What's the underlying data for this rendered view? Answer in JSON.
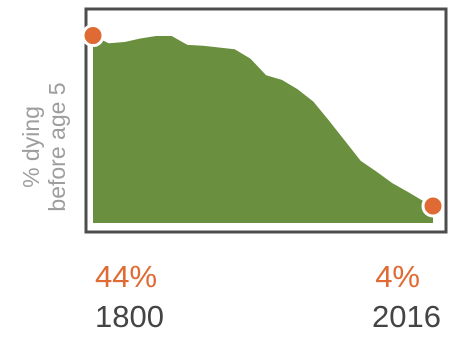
{
  "chart_data": {
    "type": "area",
    "ylabel": [
      "% dying",
      "before age 5"
    ],
    "x": [
      1800,
      1810,
      1820,
      1830,
      1840,
      1850,
      1860,
      1870,
      1880,
      1890,
      1900,
      1910,
      1920,
      1930,
      1940,
      1950,
      1960,
      1970,
      1980,
      1990,
      2000,
      2010,
      2016
    ],
    "values": [
      44,
      42.2,
      42.5,
      43.3,
      43.9,
      43.9,
      41.8,
      41.6,
      41.2,
      40.8,
      38.6,
      34.7,
      33.6,
      31.4,
      28.5,
      24,
      19.3,
      14.6,
      12.1,
      9.4,
      7.3,
      5.1,
      4
    ],
    "xlim": [
      1800,
      2016
    ],
    "ylim": [
      0,
      50
    ],
    "grid": false,
    "colors": {
      "area": "#6a8f3f",
      "markers": "#e06a33",
      "frame": "#4d4d4d",
      "ylabel": "#9e9e9e",
      "years": "#444444"
    },
    "start": {
      "value_label": "44%",
      "year_label": "1800"
    },
    "end": {
      "value_label": "4%",
      "year_label": "2016"
    }
  }
}
